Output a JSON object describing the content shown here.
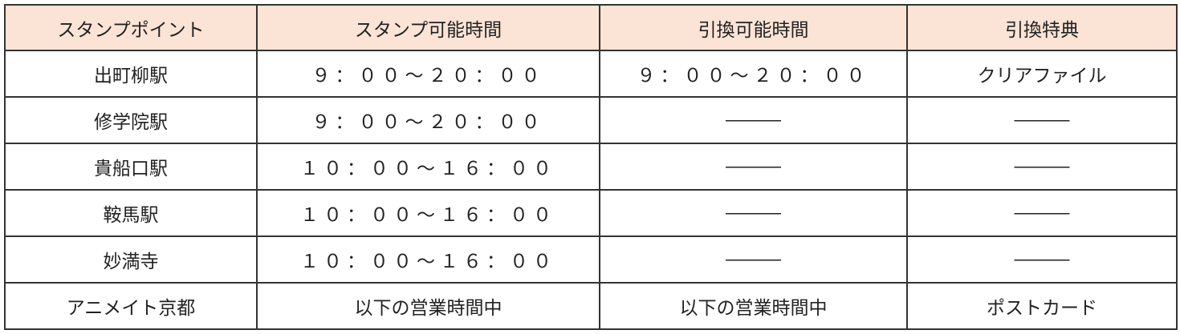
{
  "header_bg": "#fbe4d5",
  "headers": [
    "スタンプポイント",
    "スタンプ可能時間",
    "引換可能時間",
    "引換特典"
  ],
  "rows": [
    [
      "出町柳駅",
      "９：００～２０：００",
      "９：００～２０：００",
      "クリアファイル"
    ],
    [
      "修学院駅",
      "９：００～２０：００",
      "―――",
      "―――"
    ],
    [
      "貴船口駅",
      "１０：００～１６：００",
      "―――",
      "―――"
    ],
    [
      "鞍馬駅",
      "１０：００～１６：００",
      "―――",
      "―――"
    ],
    [
      "妙満寺",
      "１０：００～１６：００",
      "―――",
      "―――"
    ],
    [
      "アニメイト京都",
      "以下の営業時間中",
      "以下の営業時間中",
      "ポストカード"
    ]
  ]
}
